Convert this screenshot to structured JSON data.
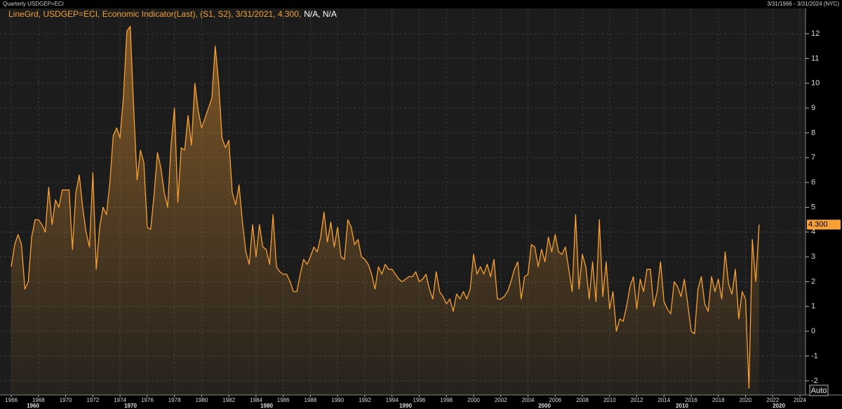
{
  "chart_data": {
    "type": "line",
    "header": "Quarterly USDGEP=ECI",
    "date_range": "3/31/1966 - 3/31/2024 (NYC)",
    "legend_suffix": "N/A, N/A",
    "last_value_label": "4.300",
    "button": "Auto",
    "grid": true,
    "xlim": [
      1965.17,
      2024.41
    ],
    "ylim": [
      -2.57,
      13.02
    ],
    "xticks": [
      1966,
      1968,
      1970,
      1972,
      1974,
      1976,
      1978,
      1980,
      1982,
      1984,
      1986,
      1988,
      1990,
      1992,
      1994,
      1996,
      1998,
      2000,
      2002,
      2004,
      2006,
      2008,
      2010,
      2012,
      2014,
      2016,
      2018,
      2020,
      2022,
      2024
    ],
    "yticks": [
      -2,
      -1,
      0,
      1,
      2,
      3,
      4,
      5,
      6,
      7,
      8,
      9,
      10,
      11,
      12
    ],
    "x_decade_labels": [
      "1960",
      "1970",
      "1980",
      "1990",
      "2000",
      "2010",
      "2020"
    ],
    "x": [
      1966,
      1966.25,
      1966.5,
      1966.75,
      1967,
      1967.25,
      1967.5,
      1967.75,
      1968,
      1968.25,
      1968.5,
      1968.75,
      1969,
      1969.25,
      1969.5,
      1969.75,
      1970,
      1970.25,
      1970.5,
      1970.75,
      1971,
      1971.25,
      1971.5,
      1971.75,
      1972,
      1972.25,
      1972.5,
      1972.75,
      1973,
      1973.25,
      1973.5,
      1973.75,
      1974,
      1974.25,
      1974.5,
      1974.75,
      1975,
      1975.25,
      1975.5,
      1975.75,
      1976,
      1976.25,
      1976.5,
      1976.75,
      1977,
      1977.25,
      1977.5,
      1977.75,
      1978,
      1978.25,
      1978.5,
      1978.75,
      1979,
      1979.25,
      1979.5,
      1979.75,
      1980,
      1980.25,
      1980.5,
      1980.75,
      1981,
      1981.25,
      1981.5,
      1981.75,
      1982,
      1982.25,
      1982.5,
      1982.75,
      1983,
      1983.25,
      1983.5,
      1983.75,
      1984,
      1984.25,
      1984.5,
      1984.75,
      1985,
      1985.25,
      1985.5,
      1985.75,
      1986,
      1986.25,
      1986.5,
      1986.75,
      1987,
      1987.25,
      1987.5,
      1987.75,
      1988,
      1988.25,
      1988.5,
      1988.75,
      1989,
      1989.25,
      1989.5,
      1989.75,
      1990,
      1990.25,
      1990.5,
      1990.75,
      1991,
      1991.25,
      1991.5,
      1991.75,
      1992,
      1992.25,
      1992.5,
      1992.75,
      1993,
      1993.25,
      1993.5,
      1993.75,
      1994,
      1994.25,
      1994.5,
      1994.75,
      1995,
      1995.25,
      1995.5,
      1995.75,
      1996,
      1996.25,
      1996.5,
      1996.75,
      1997,
      1997.25,
      1997.5,
      1997.75,
      1998,
      1998.25,
      1998.5,
      1998.75,
      1999,
      1999.25,
      1999.5,
      1999.75,
      2000,
      2000.25,
      2000.5,
      2000.75,
      2001,
      2001.25,
      2001.5,
      2001.75,
      2002,
      2002.25,
      2002.5,
      2002.75,
      2003,
      2003.25,
      2003.5,
      2003.75,
      2004,
      2004.25,
      2004.5,
      2004.75,
      2005,
      2005.25,
      2005.5,
      2005.75,
      2006,
      2006.25,
      2006.5,
      2006.75,
      2007,
      2007.25,
      2007.5,
      2007.75,
      2008,
      2008.25,
      2008.5,
      2008.75,
      2009,
      2009.25,
      2009.5,
      2009.75,
      2010,
      2010.25,
      2010.5,
      2010.75,
      2011,
      2011.25,
      2011.5,
      2011.75,
      2012,
      2012.25,
      2012.5,
      2012.75,
      2013,
      2013.25,
      2013.5,
      2013.75,
      2014,
      2014.25,
      2014.5,
      2014.75,
      2015,
      2015.25,
      2015.5,
      2015.75,
      2016,
      2016.25,
      2016.5,
      2016.75,
      2017,
      2017.25,
      2017.5,
      2017.75,
      2018,
      2018.25,
      2018.5,
      2018.75,
      2019,
      2019.25,
      2019.5,
      2019.75,
      2020,
      2020.25,
      2020.5,
      2020.75,
      2021
    ],
    "series": [
      {
        "name": "LineGrd, USDGEP=ECI, Economic Indicator(Last), (S1, S2), 3/31/2021, 4.300,",
        "color": "#f7a034",
        "values": [
          2.6,
          3.5,
          3.9,
          3.5,
          1.7,
          2.0,
          3.8,
          4.5,
          4.5,
          4.3,
          4.0,
          5.8,
          4.3,
          5.3,
          5.0,
          5.7,
          5.7,
          5.7,
          3.3,
          5.6,
          6.3,
          5.0,
          4.0,
          3.4,
          6.4,
          2.5,
          4.2,
          5.0,
          4.7,
          6.0,
          7.9,
          8.2,
          7.8,
          9.5,
          12.1,
          12.3,
          9.0,
          6.1,
          7.3,
          6.8,
          4.2,
          4.1,
          5.5,
          7.2,
          6.6,
          5.6,
          5.0,
          7.5,
          9.0,
          5.2,
          7.4,
          7.3,
          8.7,
          7.5,
          10.0,
          8.9,
          8.2,
          8.6,
          9.0,
          9.4,
          11.5,
          10.0,
          7.8,
          7.4,
          7.7,
          5.6,
          5.1,
          5.9,
          4.4,
          3.2,
          2.7,
          4.3,
          3.0,
          4.3,
          3.4,
          3.3,
          2.7,
          4.7,
          2.6,
          2.4,
          2.3,
          2.3,
          2.0,
          1.6,
          1.6,
          2.3,
          2.9,
          2.7,
          3.0,
          3.4,
          3.2,
          3.8,
          4.8,
          3.6,
          4.4,
          3.4,
          4.2,
          3.0,
          2.9,
          4.5,
          4.2,
          3.5,
          3.7,
          3.0,
          2.9,
          2.7,
          2.3,
          1.7,
          2.6,
          2.3,
          2.7,
          2.5,
          2.5,
          2.3,
          2.1,
          2.0,
          2.1,
          2.2,
          2.2,
          2.4,
          2.0,
          2.1,
          2.3,
          1.7,
          1.3,
          2.4,
          1.6,
          1.4,
          1.1,
          1.3,
          0.8,
          1.5,
          1.3,
          1.6,
          1.3,
          1.7,
          3.1,
          2.3,
          2.6,
          2.3,
          2.7,
          2.2,
          2.9,
          1.3,
          1.3,
          1.4,
          1.6,
          2.0,
          2.5,
          2.8,
          1.3,
          2.2,
          2.3,
          3.5,
          3.4,
          2.6,
          3.3,
          2.8,
          3.8,
          3.2,
          3.9,
          3.2,
          3.1,
          3.4,
          2.5,
          1.6,
          4.7,
          1.7,
          3.1,
          2.6,
          1.3,
          2.8,
          1.2,
          4.5,
          1.4,
          2.8,
          0.9,
          1.6,
          0.0,
          0.5,
          0.4,
          1.0,
          1.8,
          2.2,
          0.9,
          2.1,
          1.6,
          2.5,
          2.5,
          1.0,
          1.6,
          2.8,
          1.2,
          0.9,
          0.7,
          2.0,
          1.8,
          1.4,
          2.1,
          1.1,
          0.0,
          -0.1,
          1.7,
          2.2,
          1.1,
          0.8,
          2.2,
          1.6,
          2.1,
          1.3,
          3.2,
          1.9,
          1.5,
          2.5,
          0.5,
          1.6,
          1.3,
          -2.3,
          3.7,
          2.0,
          4.3
        ]
      }
    ]
  }
}
